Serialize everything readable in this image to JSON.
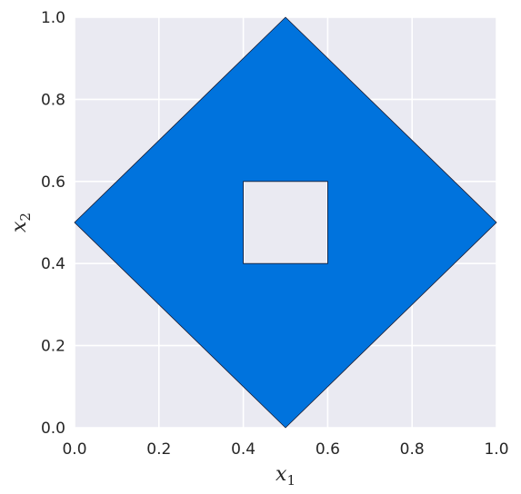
{
  "chart_data": {
    "type": "area",
    "title": "",
    "xlabel": "x",
    "xlabel_sub": "1",
    "ylabel": "x",
    "ylabel_sub": "2",
    "xlim": [
      0.0,
      1.0
    ],
    "ylim": [
      0.0,
      1.0
    ],
    "xticks": [
      "0.0",
      "0.2",
      "0.4",
      "0.6",
      "0.8",
      "1.0"
    ],
    "yticks": [
      "0.0",
      "0.2",
      "0.4",
      "0.6",
      "0.8",
      "1.0"
    ],
    "grid": true,
    "background_color": "#eaeaf2",
    "grid_color": "#ffffff",
    "fill_color": "#0073dd",
    "edge_color": "#1a1a2e",
    "region": {
      "outer": [
        [
          0.5,
          0.0
        ],
        [
          1.0,
          0.5
        ],
        [
          0.5,
          1.0
        ],
        [
          0.0,
          0.5
        ]
      ],
      "hole": [
        [
          0.4,
          0.4
        ],
        [
          0.6,
          0.4
        ],
        [
          0.6,
          0.6
        ],
        [
          0.4,
          0.6
        ]
      ]
    }
  }
}
